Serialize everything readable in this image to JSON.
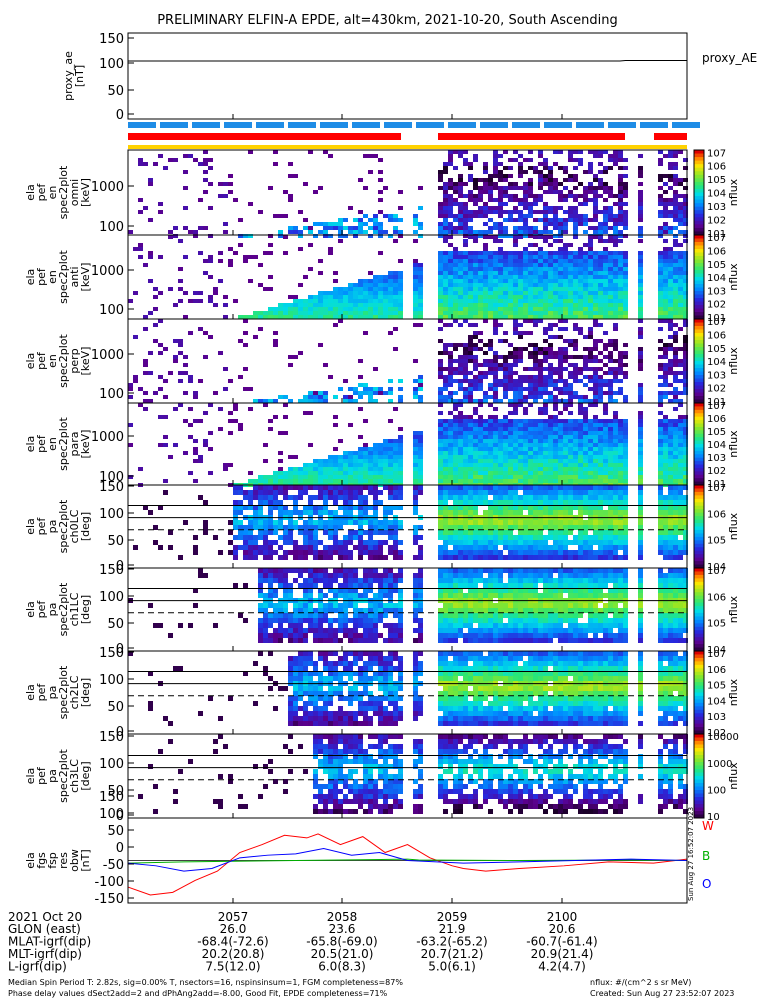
{
  "title": "PRELIMINARY ELFIN-A EPDE, alt=430km, 2021-10-20, South Ascending",
  "chart_data": [
    {
      "type": "line",
      "panel": "proxy_ae",
      "ylabel_lines": [
        "proxy_ae",
        "[nT]"
      ],
      "yticks": [
        "0",
        "50",
        "100",
        "150"
      ],
      "ylim": [
        -15,
        160
      ],
      "legend": "proxy_AE",
      "series": [
        {
          "name": "proxy_AE",
          "x_frac": [
            0.0,
            0.88,
            0.89,
            1.0
          ],
          "values": [
            103,
            103,
            104,
            104
          ]
        }
      ]
    },
    {
      "type": "heatmap",
      "panel": "energy spectrogram 1",
      "ylabel_lines": [
        "ela",
        "pef",
        "en",
        "spec2plot",
        "omni",
        "[keV]"
      ],
      "yticks": [
        "100",
        "1000"
      ],
      "colorbar": {
        "label": "nflux",
        "ticks": [
          "10^1",
          "10^2",
          "10^3",
          "10^4",
          "10^5",
          "10^6",
          "10^7"
        ]
      }
    },
    {
      "type": "heatmap",
      "panel": "energy spectrogram 2",
      "ylabel_lines": [
        "ela",
        "pef",
        "en",
        "spec2plot",
        "anti",
        "[keV]"
      ],
      "yticks": [
        "100",
        "1000"
      ],
      "colorbar": {
        "label": "nflux",
        "ticks": [
          "10^1",
          "10^2",
          "10^3",
          "10^4",
          "10^5",
          "10^6",
          "10^7"
        ]
      }
    },
    {
      "type": "heatmap",
      "panel": "energy spectrogram 3",
      "ylabel_lines": [
        "ela",
        "pef",
        "en",
        "spec2plot",
        "perp",
        "[keV]"
      ],
      "yticks": [
        "100",
        "1000"
      ],
      "colorbar": {
        "label": "nflux",
        "ticks": [
          "10^1",
          "10^2",
          "10^3",
          "10^4",
          "10^5",
          "10^6",
          "10^7"
        ]
      }
    },
    {
      "type": "heatmap",
      "panel": "energy spectrogram 4",
      "ylabel_lines": [
        "ela",
        "pef",
        "en",
        "spec2plot",
        "para",
        "[keV]"
      ],
      "yticks": [
        "100",
        "1000"
      ],
      "colorbar": {
        "label": "nflux",
        "ticks": [
          "10^1",
          "10^2",
          "10^3",
          "10^4",
          "10^5",
          "10^6",
          "10^7"
        ]
      }
    },
    {
      "type": "heatmap",
      "panel": "pitch angle ch0",
      "ylabel_lines": [
        "ela",
        "pef",
        "pa",
        "spec2plot",
        "ch0LC",
        "[deg]"
      ],
      "yticks": [
        "0",
        "50",
        "100",
        "150"
      ],
      "ylim": [
        0,
        180
      ],
      "colorbar": {
        "label": "nflux",
        "ticks": [
          "10^4",
          "10^5",
          "10^6",
          "10^7"
        ]
      }
    },
    {
      "type": "heatmap",
      "panel": "pitch angle ch1",
      "ylabel_lines": [
        "ela",
        "pef",
        "pa",
        "spec2plot",
        "ch1LC",
        "[deg]"
      ],
      "yticks": [
        "0",
        "50",
        "100",
        "150"
      ],
      "ylim": [
        0,
        180
      ],
      "colorbar": {
        "label": "nflux",
        "ticks": [
          "10^4",
          "10^5",
          "10^6",
          "10^7"
        ]
      }
    },
    {
      "type": "heatmap",
      "panel": "pitch angle ch2",
      "ylabel_lines": [
        "ela",
        "pef",
        "pa",
        "spec2plot",
        "ch2LC",
        "[deg]"
      ],
      "yticks": [
        "0",
        "50",
        "100",
        "150"
      ],
      "ylim": [
        0,
        180
      ],
      "colorbar": {
        "label": "nflux",
        "ticks": [
          "10^2",
          "10^3",
          "10^4",
          "10^5",
          "10^6",
          "10^7"
        ]
      }
    },
    {
      "type": "heatmap",
      "panel": "pitch angle ch3",
      "ylabel_lines": [
        "ela",
        "pef",
        "pa",
        "spec2plot",
        "ch3LC",
        "[deg]"
      ],
      "yticks": [
        "0",
        "50",
        "100",
        "150"
      ],
      "ylim": [
        0,
        180
      ],
      "colorbar": {
        "label": "nflux",
        "ticks": [
          "10",
          "100",
          "1000",
          "10000"
        ]
      }
    },
    {
      "type": "line",
      "panel": "magnetic field residual",
      "ylabel_lines": [
        "ela",
        "fgs",
        "fsp",
        "res",
        "obw",
        "[nT]"
      ],
      "yticks": [
        "-150",
        "-100",
        "-50",
        "0",
        "50",
        "100",
        "150"
      ],
      "ylim": [
        -160,
        160
      ],
      "legend": [
        "W",
        "B",
        "O"
      ],
      "series": [
        {
          "name": "W",
          "color": "#ff0000",
          "x_frac": [
            0.0,
            0.04,
            0.08,
            0.12,
            0.16,
            0.2,
            0.24,
            0.28,
            0.32,
            0.34,
            0.38,
            0.42,
            0.46,
            0.5,
            0.54,
            0.58,
            0.6,
            0.64,
            0.7,
            0.78,
            0.86,
            0.94,
            1.0
          ],
          "values": [
            -100,
            -130,
            -120,
            -75,
            -40,
            30,
            60,
            95,
            85,
            100,
            60,
            90,
            30,
            60,
            10,
            -20,
            -30,
            -40,
            -30,
            -20,
            -5,
            -10,
            5
          ]
        },
        {
          "name": "B",
          "color": "#00b000",
          "x_frac": [
            0.0,
            0.1,
            0.3,
            0.5,
            0.52,
            0.7,
            0.9,
            1.0
          ],
          "values": [
            -10,
            -5,
            0,
            5,
            2,
            0,
            2,
            0
          ]
        },
        {
          "name": "O",
          "color": "#0000ff",
          "x_frac": [
            0.0,
            0.05,
            0.1,
            0.15,
            0.2,
            0.25,
            0.3,
            0.35,
            0.4,
            0.45,
            0.5,
            0.6,
            0.7,
            0.8,
            0.9,
            1.0
          ],
          "values": [
            -10,
            -20,
            -40,
            -30,
            10,
            20,
            25,
            45,
            20,
            30,
            0,
            -10,
            -5,
            0,
            5,
            0
          ]
        }
      ]
    }
  ],
  "footer": {
    "date": "2021 Oct 20",
    "times": [
      "2057",
      "2058",
      "2059",
      "2100"
    ],
    "rows": [
      {
        "label": "GLON (east)",
        "values": [
          "26.0",
          "23.6",
          "21.9",
          "20.6"
        ]
      },
      {
        "label": "MLAT-igrf(dip)",
        "values": [
          "-68.4(-72.6)",
          "-65.8(-69.0)",
          "-63.2(-65.2)",
          "-60.7(-61.4)"
        ]
      },
      {
        "label": "MLT-igrf(dip)",
        "values": [
          "20.2(20.8)",
          "20.5(21.0)",
          "20.7(21.2)",
          "20.9(21.4)"
        ]
      },
      {
        "label": "L-igrf(dip)",
        "values": [
          "7.5(12.0)",
          "6.0(8.3)",
          "5.0(6.1)",
          "4.2(4.7)"
        ]
      }
    ],
    "note1": "Median Spin Period T: 2.82s, sig=0.00% T, nsectors=16, nspinsinsum=1, FGM completeness=87%",
    "note2": "Phase delay values dSect2add=2 and dPhAng2add=-8.00, Good Fit, EPDE completeness=71%",
    "units": "nflux: #/(cm^2 s sr MeV)",
    "created": "Created: Sun Aug 27 23:52:07 2023",
    "side_stamp": "Sun Aug 27 16:52:07 2023"
  },
  "colors": {
    "red": "#ff0000",
    "blue": "#1e8ce6",
    "yellow": "#ffd200"
  }
}
